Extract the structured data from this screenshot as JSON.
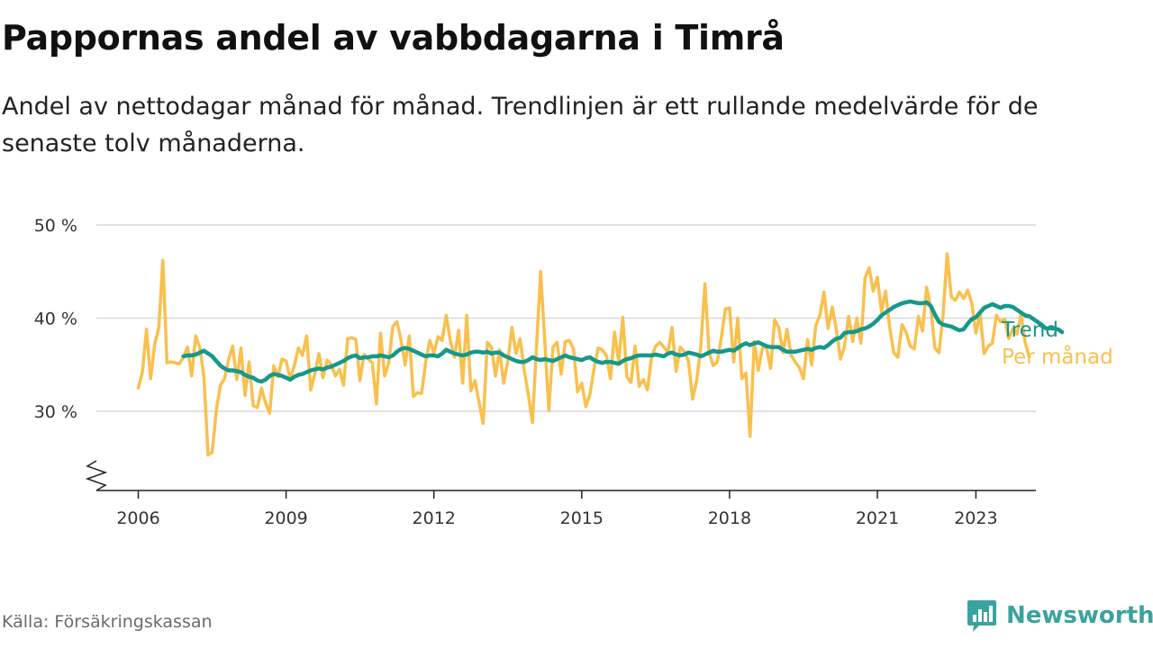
{
  "title": "Pappornas andel av vabbdagarna i Timrå",
  "subtitle": "Andel av nettodagar månad för månad. Trendlinjen är ett rullande medelvärde för de senaste tolv månaderna.",
  "source": "Källa: Försäkringskassan",
  "brand": {
    "name": "Newsworthy",
    "icon": "bar-chart-logo-icon",
    "color": "#3aa39d"
  },
  "colors": {
    "monthly": "#f9c04e",
    "trend": "#16988b",
    "grid": "#d9d9d9",
    "axis": "#222222"
  },
  "chart_data": {
    "type": "line",
    "title": "Pappornas andel av vabbdagarna i Timrå",
    "xlabel": "",
    "ylabel": "",
    "x_ticks": [
      "2006",
      "2009",
      "2012",
      "2015",
      "2018",
      "2021",
      "2023"
    ],
    "y_ticks": [
      30,
      40,
      50
    ],
    "y_tick_labels": [
      "30 %",
      "40 %",
      "50 %"
    ],
    "ylim": [
      22,
      50
    ],
    "xlim": [
      "2005-03",
      "2024-03"
    ],
    "y_axis_break": true,
    "grid": true,
    "legend": "right, labels at line ends",
    "x_start": "2006-01",
    "x_step": "month",
    "series": [
      {
        "name": "Per månad",
        "color": "#f9c04e",
        "values": [
          32.5,
          34.2,
          38.8,
          33.5,
          37.2,
          39.0,
          46.2,
          35.2,
          35.3,
          35.2,
          35.1,
          35.8,
          36.9,
          33.8,
          38.1,
          36.8,
          33.7,
          25.3,
          25.6,
          30.1,
          32.8,
          33.5,
          35.6,
          37.0,
          33.4,
          36.8,
          31.7,
          35.3,
          30.6,
          30.4,
          32.5,
          30.9,
          29.8,
          34.9,
          33.7,
          35.6,
          35.4,
          33.5,
          34.9,
          36.8,
          36.0,
          38.1,
          32.3,
          34.0,
          36.2,
          33.6,
          35.5,
          35.0,
          33.8,
          34.5,
          32.8,
          37.8,
          37.9,
          37.7,
          33.3,
          36.1,
          35.6,
          35.2,
          30.8,
          38.4,
          33.8,
          35.2,
          39.1,
          39.6,
          37.7,
          35.0,
          38.1,
          31.6,
          32.0,
          31.9,
          35.3,
          37.6,
          36.3,
          38.0,
          37.6,
          40.3,
          37.6,
          35.8,
          38.7,
          33.0,
          40.3,
          32.2,
          33.3,
          31.0,
          28.7,
          37.4,
          36.9,
          33.8,
          36.6,
          33.0,
          35.4,
          39.0,
          36.2,
          37.8,
          34.4,
          31.8,
          28.8,
          37.1,
          45.0,
          37.5,
          30.1,
          36.9,
          37.4,
          34.0,
          37.5,
          37.6,
          36.7,
          32.1,
          33.0,
          30.5,
          31.8,
          34.6,
          36.8,
          36.6,
          36.0,
          33.5,
          38.5,
          35.3,
          40.1,
          33.7,
          33.1,
          37.0,
          32.7,
          33.4,
          32.3,
          35.8,
          37.0,
          37.4,
          36.9,
          36.3,
          39.0,
          34.3,
          36.9,
          36.4,
          35.4,
          31.3,
          33.3,
          37.0,
          43.7,
          36.4,
          34.9,
          35.3,
          37.9,
          41.0,
          41.1,
          35.3,
          40.0,
          33.5,
          34.1,
          27.3,
          37.5,
          34.4,
          36.8,
          36.9,
          34.6,
          39.8,
          39.0,
          36.3,
          38.8,
          36.0,
          35.3,
          34.7,
          33.5,
          37.7,
          35.0,
          39.2,
          40.3,
          42.8,
          38.9,
          41.2,
          38.8,
          35.6,
          37.0,
          40.2,
          37.5,
          40.0,
          37.3,
          44.3,
          45.4,
          42.9,
          44.4,
          40.7,
          42.9,
          39.0,
          36.3,
          35.8,
          39.3,
          38.5,
          37.0,
          36.7,
          40.2,
          38.6,
          43.3,
          41.2,
          36.8,
          36.3,
          40.3,
          46.9,
          42.3,
          41.9,
          42.8,
          42.1,
          43.0,
          41.6,
          38.4,
          40.5,
          36.2,
          37.0,
          37.3,
          40.3,
          39.6,
          39.9,
          37.8,
          38.9,
          38.3,
          40.4,
          37.4,
          35.8
        ]
      },
      {
        "name": "Trend",
        "color": "#16988b",
        "values": [
          null,
          null,
          null,
          null,
          null,
          null,
          null,
          null,
          null,
          null,
          null,
          35.9,
          36.0,
          36.0,
          36.1,
          36.3,
          36.5,
          36.2,
          35.9,
          35.4,
          34.9,
          34.6,
          34.4,
          34.4,
          34.3,
          34.2,
          33.9,
          33.7,
          33.6,
          33.3,
          33.2,
          33.4,
          33.8,
          34.0,
          33.9,
          33.8,
          33.6,
          33.4,
          33.7,
          33.9,
          34.0,
          34.2,
          34.4,
          34.5,
          34.6,
          34.5,
          34.7,
          34.8,
          35.0,
          35.2,
          35.4,
          35.7,
          35.9,
          36.0,
          35.7,
          35.8,
          35.8,
          35.9,
          35.9,
          36.0,
          35.9,
          35.8,
          36.0,
          36.4,
          36.7,
          36.8,
          36.7,
          36.5,
          36.3,
          36.1,
          35.9,
          36.0,
          36.0,
          35.9,
          36.2,
          36.6,
          36.4,
          36.2,
          36.1,
          36.0,
          36.1,
          36.3,
          36.4,
          36.4,
          36.3,
          36.4,
          36.2,
          36.3,
          36.3,
          36.0,
          35.8,
          35.6,
          35.4,
          35.3,
          35.3,
          35.5,
          35.8,
          35.6,
          35.5,
          35.6,
          35.5,
          35.4,
          35.6,
          35.8,
          36.0,
          35.8,
          35.7,
          35.6,
          35.5,
          35.7,
          35.8,
          35.5,
          35.3,
          35.2,
          35.3,
          35.3,
          35.2,
          35.1,
          35.4,
          35.6,
          35.7,
          35.9,
          36.0,
          36.0,
          36.0,
          36.0,
          36.1,
          36.0,
          35.9,
          36.2,
          36.3,
          36.1,
          36.0,
          36.1,
          36.3,
          36.2,
          36.1,
          35.9,
          36.1,
          36.3,
          36.5,
          36.4,
          36.4,
          36.5,
          36.6,
          36.5,
          36.8,
          37.1,
          37.3,
          37.1,
          37.3,
          37.4,
          37.2,
          37.0,
          36.9,
          36.9,
          36.9,
          36.6,
          36.4,
          36.4,
          36.4,
          36.5,
          36.6,
          36.7,
          36.6,
          36.8,
          36.9,
          36.8,
          37.1,
          37.5,
          37.8,
          37.9,
          38.4,
          38.5,
          38.5,
          38.6,
          38.8,
          38.9,
          39.1,
          39.4,
          39.8,
          40.3,
          40.6,
          40.9,
          41.2,
          41.4,
          41.6,
          41.7,
          41.8,
          41.7,
          41.6,
          41.6,
          41.7,
          41.3,
          40.4,
          39.6,
          39.3,
          39.2,
          39.1,
          38.9,
          38.7,
          38.8,
          39.4,
          39.9,
          40.1,
          40.6,
          41.1,
          41.3,
          41.5,
          41.3,
          41.1,
          41.3,
          41.3,
          41.2,
          40.9,
          40.6,
          40.3,
          40.2,
          39.9,
          39.6,
          39.3,
          38.9,
          38.9,
          38.9,
          38.8,
          38.5
        ]
      }
    ]
  }
}
